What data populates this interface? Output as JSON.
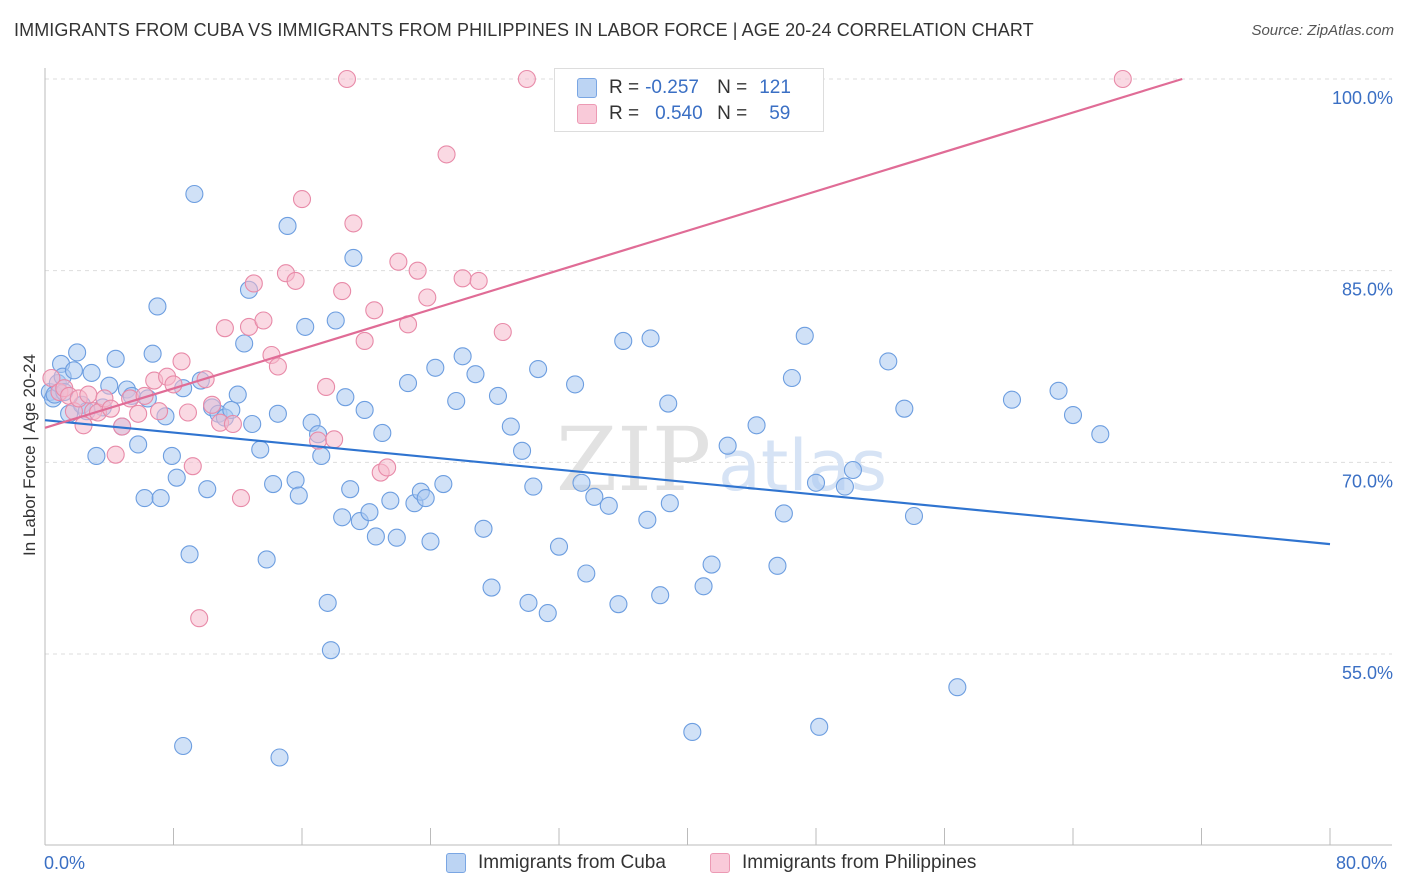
{
  "header": {
    "title": "IMMIGRANTS FROM CUBA VS IMMIGRANTS FROM PHILIPPINES IN LABOR FORCE | AGE 20-24 CORRELATION CHART",
    "source": "Source: ZipAtlas.com"
  },
  "colors": {
    "blue_fill": "#a9c8f0",
    "blue_stroke": "#6d9ee0",
    "blue_line": "#2f74d0",
    "pink_fill": "#f6b9cc",
    "pink_stroke": "#e88aa8",
    "pink_line": "#e06c96",
    "axis_text": "#3a6fc4",
    "grid": "#dddddd"
  },
  "legend": {
    "rows": [
      {
        "r_label": "R =",
        "r_value": "-0.257",
        "n_label": "N =",
        "n_value": "121"
      },
      {
        "r_label": "R =",
        "r_value": "0.540",
        "n_label": "N =",
        "n_value": "59"
      }
    ]
  },
  "watermark": {
    "zip": "ZIP",
    "atlas": "atlas"
  },
  "chart_data": {
    "type": "scatter",
    "title": "IMMIGRANTS FROM CUBA VS IMMIGRANTS FROM PHILIPPINES IN LABOR FORCE | AGE 20-24 CORRELATION CHART",
    "xlabel": "",
    "ylabel": "In Labor Force | Age 20-24",
    "xlim": [
      0,
      80
    ],
    "ylim": [
      40,
      101.5
    ],
    "x_tick_labels": [
      "0.0%",
      "80.0%"
    ],
    "y_ticks": [
      55,
      70,
      85,
      100
    ],
    "y_tick_labels": [
      "55.0%",
      "70.0%",
      "85.0%",
      "100.0%"
    ],
    "legend_position": "top-center",
    "series": [
      {
        "name": "Immigrants from Cuba",
        "color": "#a9c8f0",
        "trend": {
          "x": [
            0,
            80
          ],
          "y": [
            73.3,
            63.6
          ]
        },
        "points": [
          [
            0.3,
            75.5
          ],
          [
            0.5,
            75.0
          ],
          [
            0.6,
            75.3
          ],
          [
            0.8,
            76.2
          ],
          [
            1.0,
            77.7
          ],
          [
            1.1,
            76.7
          ],
          [
            1.2,
            75.5
          ],
          [
            1.5,
            73.8
          ],
          [
            1.8,
            77.2
          ],
          [
            2.0,
            78.6
          ],
          [
            2.3,
            74.5
          ],
          [
            2.6,
            74.0
          ],
          [
            2.9,
            77.0
          ],
          [
            3.2,
            70.5
          ],
          [
            3.6,
            74.3
          ],
          [
            4.0,
            76.0
          ],
          [
            4.4,
            78.1
          ],
          [
            4.8,
            72.8
          ],
          [
            5.1,
            75.7
          ],
          [
            5.4,
            75.2
          ],
          [
            5.8,
            71.4
          ],
          [
            6.2,
            67.2
          ],
          [
            6.4,
            75.0
          ],
          [
            6.7,
            78.5
          ],
          [
            7.0,
            82.2
          ],
          [
            7.2,
            67.2
          ],
          [
            7.5,
            73.6
          ],
          [
            7.9,
            70.5
          ],
          [
            8.2,
            68.8
          ],
          [
            8.6,
            75.8
          ],
          [
            9.0,
            62.8
          ],
          [
            9.3,
            91.0
          ],
          [
            9.7,
            76.4
          ],
          [
            10.1,
            67.9
          ],
          [
            10.4,
            74.3
          ],
          [
            10.8,
            73.8
          ],
          [
            11.2,
            73.5
          ],
          [
            11.6,
            74.1
          ],
          [
            12.0,
            75.3
          ],
          [
            12.4,
            79.3
          ],
          [
            12.7,
            83.5
          ],
          [
            12.9,
            73.0
          ],
          [
            13.4,
            71.0
          ],
          [
            13.8,
            62.4
          ],
          [
            14.2,
            68.3
          ],
          [
            14.5,
            73.8
          ],
          [
            15.1,
            88.5
          ],
          [
            15.6,
            68.6
          ],
          [
            15.8,
            67.4
          ],
          [
            16.2,
            80.6
          ],
          [
            16.6,
            73.1
          ],
          [
            17.0,
            72.2
          ],
          [
            17.2,
            70.5
          ],
          [
            17.6,
            59.0
          ],
          [
            17.8,
            55.3
          ],
          [
            18.1,
            81.1
          ],
          [
            18.5,
            65.7
          ],
          [
            18.7,
            75.1
          ],
          [
            19.0,
            67.9
          ],
          [
            19.2,
            86.0
          ],
          [
            19.6,
            65.4
          ],
          [
            19.9,
            74.1
          ],
          [
            20.2,
            66.1
          ],
          [
            20.6,
            64.2
          ],
          [
            21.0,
            72.3
          ],
          [
            21.5,
            67.0
          ],
          [
            21.9,
            64.1
          ],
          [
            22.6,
            76.2
          ],
          [
            23.0,
            66.8
          ],
          [
            23.4,
            67.7
          ],
          [
            23.7,
            67.2
          ],
          [
            24.0,
            63.8
          ],
          [
            24.3,
            77.4
          ],
          [
            24.8,
            68.3
          ],
          [
            25.6,
            74.8
          ],
          [
            26.0,
            78.3
          ],
          [
            26.8,
            76.9
          ],
          [
            27.3,
            64.8
          ],
          [
            27.8,
            60.2
          ],
          [
            28.2,
            75.2
          ],
          [
            29.0,
            72.8
          ],
          [
            29.7,
            70.9
          ],
          [
            30.1,
            59.0
          ],
          [
            30.4,
            68.1
          ],
          [
            30.7,
            77.3
          ],
          [
            31.3,
            58.2
          ],
          [
            32.0,
            63.4
          ],
          [
            33.0,
            76.1
          ],
          [
            33.4,
            68.4
          ],
          [
            33.7,
            61.3
          ],
          [
            34.2,
            67.3
          ],
          [
            35.1,
            66.6
          ],
          [
            35.7,
            58.9
          ],
          [
            36.0,
            79.5
          ],
          [
            37.5,
            65.5
          ],
          [
            37.7,
            79.7
          ],
          [
            38.3,
            59.6
          ],
          [
            38.8,
            74.6
          ],
          [
            38.9,
            66.8
          ],
          [
            40.3,
            48.9
          ],
          [
            41.0,
            60.3
          ],
          [
            41.5,
            62.0
          ],
          [
            42.5,
            71.3
          ],
          [
            44.3,
            72.9
          ],
          [
            45.6,
            61.9
          ],
          [
            46.5,
            76.6
          ],
          [
            47.3,
            79.9
          ],
          [
            48.0,
            68.4
          ],
          [
            48.2,
            49.3
          ],
          [
            49.8,
            68.1
          ],
          [
            50.3,
            69.4
          ],
          [
            52.5,
            77.9
          ],
          [
            53.5,
            74.2
          ],
          [
            54.1,
            65.8
          ],
          [
            56.8,
            52.4
          ],
          [
            60.2,
            74.9
          ],
          [
            63.1,
            75.6
          ],
          [
            64.0,
            73.7
          ],
          [
            65.7,
            72.2
          ],
          [
            46.0,
            66.0
          ],
          [
            8.6,
            47.8
          ],
          [
            14.6,
            46.9
          ]
        ]
      },
      {
        "name": "Immigrants from Philippines",
        "color": "#f6b9cc",
        "trend": {
          "x": [
            0,
            70.8
          ],
          "y": [
            72.7,
            100.0
          ]
        },
        "points": [
          [
            0.4,
            76.6
          ],
          [
            0.9,
            75.5
          ],
          [
            1.2,
            75.8
          ],
          [
            1.5,
            75.2
          ],
          [
            1.8,
            74.0
          ],
          [
            2.1,
            75.0
          ],
          [
            2.4,
            72.9
          ],
          [
            2.7,
            75.3
          ],
          [
            3.0,
            74.0
          ],
          [
            3.3,
            73.9
          ],
          [
            3.7,
            75.0
          ],
          [
            4.1,
            74.2
          ],
          [
            4.4,
            70.6
          ],
          [
            4.8,
            72.8
          ],
          [
            5.3,
            75.0
          ],
          [
            5.8,
            73.8
          ],
          [
            6.2,
            75.2
          ],
          [
            6.8,
            76.4
          ],
          [
            7.1,
            74.0
          ],
          [
            7.6,
            76.7
          ],
          [
            8.0,
            76.1
          ],
          [
            8.5,
            77.9
          ],
          [
            8.9,
            73.9
          ],
          [
            9.2,
            69.7
          ],
          [
            9.6,
            57.8
          ],
          [
            10.0,
            76.5
          ],
          [
            10.4,
            74.5
          ],
          [
            10.9,
            73.1
          ],
          [
            11.2,
            80.5
          ],
          [
            11.7,
            73.0
          ],
          [
            12.2,
            67.2
          ],
          [
            12.7,
            80.6
          ],
          [
            13.0,
            84.0
          ],
          [
            13.6,
            81.1
          ],
          [
            14.1,
            78.4
          ],
          [
            14.5,
            77.5
          ],
          [
            15.0,
            84.8
          ],
          [
            15.6,
            84.2
          ],
          [
            16.0,
            90.6
          ],
          [
            17.0,
            71.7
          ],
          [
            17.5,
            75.9
          ],
          [
            18.0,
            71.8
          ],
          [
            18.5,
            83.4
          ],
          [
            19.2,
            88.7
          ],
          [
            19.9,
            79.5
          ],
          [
            20.5,
            81.9
          ],
          [
            20.9,
            69.2
          ],
          [
            21.3,
            69.6
          ],
          [
            22.0,
            85.7
          ],
          [
            22.6,
            80.8
          ],
          [
            23.2,
            85.0
          ],
          [
            23.8,
            82.9
          ],
          [
            25.0,
            94.1
          ],
          [
            26.0,
            84.4
          ],
          [
            27.0,
            84.2
          ],
          [
            28.5,
            80.2
          ],
          [
            30.0,
            100.0
          ],
          [
            18.8,
            100.0
          ],
          [
            67.1,
            100.0
          ]
        ]
      }
    ]
  },
  "bottom_legend": {
    "cuba_label": "Immigrants from Cuba",
    "phil_label": "Immigrants from Philippines"
  }
}
